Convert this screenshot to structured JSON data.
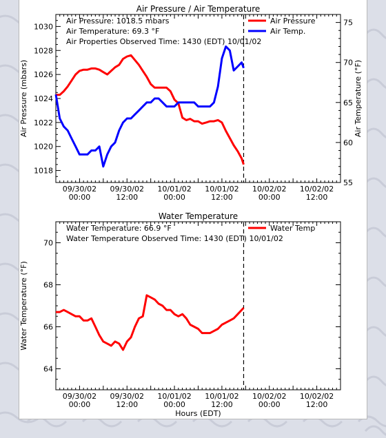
{
  "page": {
    "background": "#dcdfe8",
    "panel_background": "#ffffff"
  },
  "chart_data": [
    {
      "type": "line",
      "title": "Air Pressure / Air Temperature",
      "ylabel": "Air Pressure (mbars)",
      "y2label": "Air Temperature (°F)",
      "ylim": [
        1017,
        1031
      ],
      "y2lim": [
        55,
        76
      ],
      "yticks": [
        1018,
        1020,
        1022,
        1024,
        1026,
        1028,
        1030
      ],
      "y2ticks": [
        55,
        60,
        65,
        70,
        75
      ],
      "xlim": [
        0,
        72
      ],
      "xticks": [
        {
          "h": 6,
          "date": "09/30/02",
          "time": "00:00"
        },
        {
          "h": 18,
          "date": "09/30/02",
          "time": "12:00"
        },
        {
          "h": 30,
          "date": "10/01/02",
          "time": "00:00"
        },
        {
          "h": 42,
          "date": "10/01/02",
          "time": "12:00"
        },
        {
          "h": 54,
          "date": "10/02/02",
          "time": "00:00"
        },
        {
          "h": 66,
          "date": "10/02/02",
          "time": "12:00"
        }
      ],
      "now_marker_h": 47.5,
      "annotations": [
        "Air Pressure:  1018.5  mbars",
        "Air Temperature:  69.3 °F",
        "Air Properties Observed Time: 1430 (EDT) 10/01/02"
      ],
      "legend_position": "top-right",
      "series": [
        {
          "name": "Air Pressure",
          "axis": "left",
          "color": "#ff0000",
          "x": [
            0,
            1,
            2,
            3,
            4,
            5,
            6,
            7,
            8,
            9,
            10,
            11,
            12,
            13,
            14,
            15,
            16,
            17,
            18,
            19,
            20,
            21,
            22,
            23,
            24,
            25,
            26,
            27,
            28,
            29,
            30,
            31,
            32,
            33,
            34,
            35,
            36,
            37,
            38,
            39,
            40,
            41,
            42,
            43,
            44,
            45,
            46,
            47,
            47.5
          ],
          "values": [
            1024.3,
            1024.3,
            1024.6,
            1025.0,
            1025.5,
            1026.0,
            1026.3,
            1026.4,
            1026.4,
            1026.5,
            1026.5,
            1026.4,
            1026.2,
            1026.0,
            1026.3,
            1026.6,
            1026.8,
            1027.3,
            1027.5,
            1027.6,
            1027.2,
            1026.8,
            1026.3,
            1025.8,
            1025.2,
            1024.9,
            1024.9,
            1024.9,
            1024.9,
            1024.6,
            1023.9,
            1023.6,
            1022.4,
            1022.2,
            1022.3,
            1022.1,
            1022.1,
            1021.9,
            1022.0,
            1022.1,
            1022.1,
            1022.2,
            1022.0,
            1021.3,
            1020.7,
            1020.1,
            1019.6,
            1019.0,
            1018.5
          ]
        },
        {
          "name": "Air Temp.",
          "axis": "right",
          "color": "#0000ff",
          "x": [
            0,
            1,
            2,
            3,
            4,
            5,
            6,
            7,
            8,
            9,
            10,
            11,
            12,
            13,
            14,
            15,
            16,
            17,
            18,
            19,
            20,
            21,
            22,
            23,
            24,
            25,
            26,
            27,
            28,
            29,
            30,
            31,
            32,
            33,
            34,
            35,
            36,
            37,
            38,
            39,
            40,
            41,
            42,
            43,
            44,
            45,
            46,
            47,
            47.5
          ],
          "values": [
            66.0,
            63.0,
            62.0,
            61.5,
            60.5,
            59.5,
            58.5,
            58.5,
            58.5,
            59.0,
            59.0,
            59.5,
            57.0,
            58.5,
            59.5,
            60.0,
            61.5,
            62.5,
            63.0,
            63.0,
            63.5,
            64.0,
            64.5,
            65.0,
            65.0,
            65.5,
            65.5,
            65.0,
            64.5,
            64.5,
            64.5,
            65.0,
            65.0,
            65.0,
            65.0,
            65.0,
            64.5,
            64.5,
            64.5,
            64.5,
            65.0,
            67.0,
            70.5,
            72.0,
            71.5,
            69.0,
            69.5,
            70.0,
            69.3
          ]
        }
      ]
    },
    {
      "type": "line",
      "title": "Water Temperature",
      "xlabel": "Hours (EDT)",
      "ylabel": "Water Temperature (°F)",
      "ylim": [
        63,
        71
      ],
      "yticks": [
        64,
        66,
        68,
        70
      ],
      "xlim": [
        0,
        72
      ],
      "xticks": [
        {
          "h": 6,
          "date": "09/30/02",
          "time": "00:00"
        },
        {
          "h": 18,
          "date": "09/30/02",
          "time": "12:00"
        },
        {
          "h": 30,
          "date": "10/01/02",
          "time": "00:00"
        },
        {
          "h": 42,
          "date": "10/01/02",
          "time": "12:00"
        },
        {
          "h": 54,
          "date": "10/02/02",
          "time": "00:00"
        },
        {
          "h": 66,
          "date": "10/02/02",
          "time": "12:00"
        }
      ],
      "now_marker_h": 47.5,
      "annotations": [
        "Water Temperature:  66.9  °F",
        "Water Temperature Observed Time: 1430 (EDT) 10/01/02"
      ],
      "legend_position": "top-right",
      "series": [
        {
          "name": "Water Temp",
          "color": "#ff0000",
          "x": [
            0,
            1,
            2,
            3,
            4,
            5,
            6,
            7,
            8,
            9,
            10,
            11,
            12,
            13,
            14,
            15,
            16,
            17,
            18,
            19,
            20,
            21,
            22,
            23,
            24,
            25,
            26,
            27,
            28,
            29,
            30,
            31,
            32,
            33,
            34,
            35,
            36,
            37,
            38,
            39,
            40,
            41,
            42,
            43,
            44,
            45,
            46,
            47,
            47.5
          ],
          "values": [
            66.7,
            66.7,
            66.8,
            66.7,
            66.6,
            66.5,
            66.5,
            66.3,
            66.3,
            66.4,
            66.0,
            65.6,
            65.3,
            65.2,
            65.1,
            65.3,
            65.2,
            64.9,
            65.3,
            65.5,
            66.0,
            66.4,
            66.5,
            67.5,
            67.4,
            67.3,
            67.1,
            67.0,
            66.8,
            66.8,
            66.6,
            66.5,
            66.6,
            66.4,
            66.1,
            66.0,
            65.9,
            65.7,
            65.7,
            65.7,
            65.8,
            65.9,
            66.1,
            66.2,
            66.3,
            66.4,
            66.6,
            66.8,
            66.9
          ]
        }
      ]
    }
  ]
}
